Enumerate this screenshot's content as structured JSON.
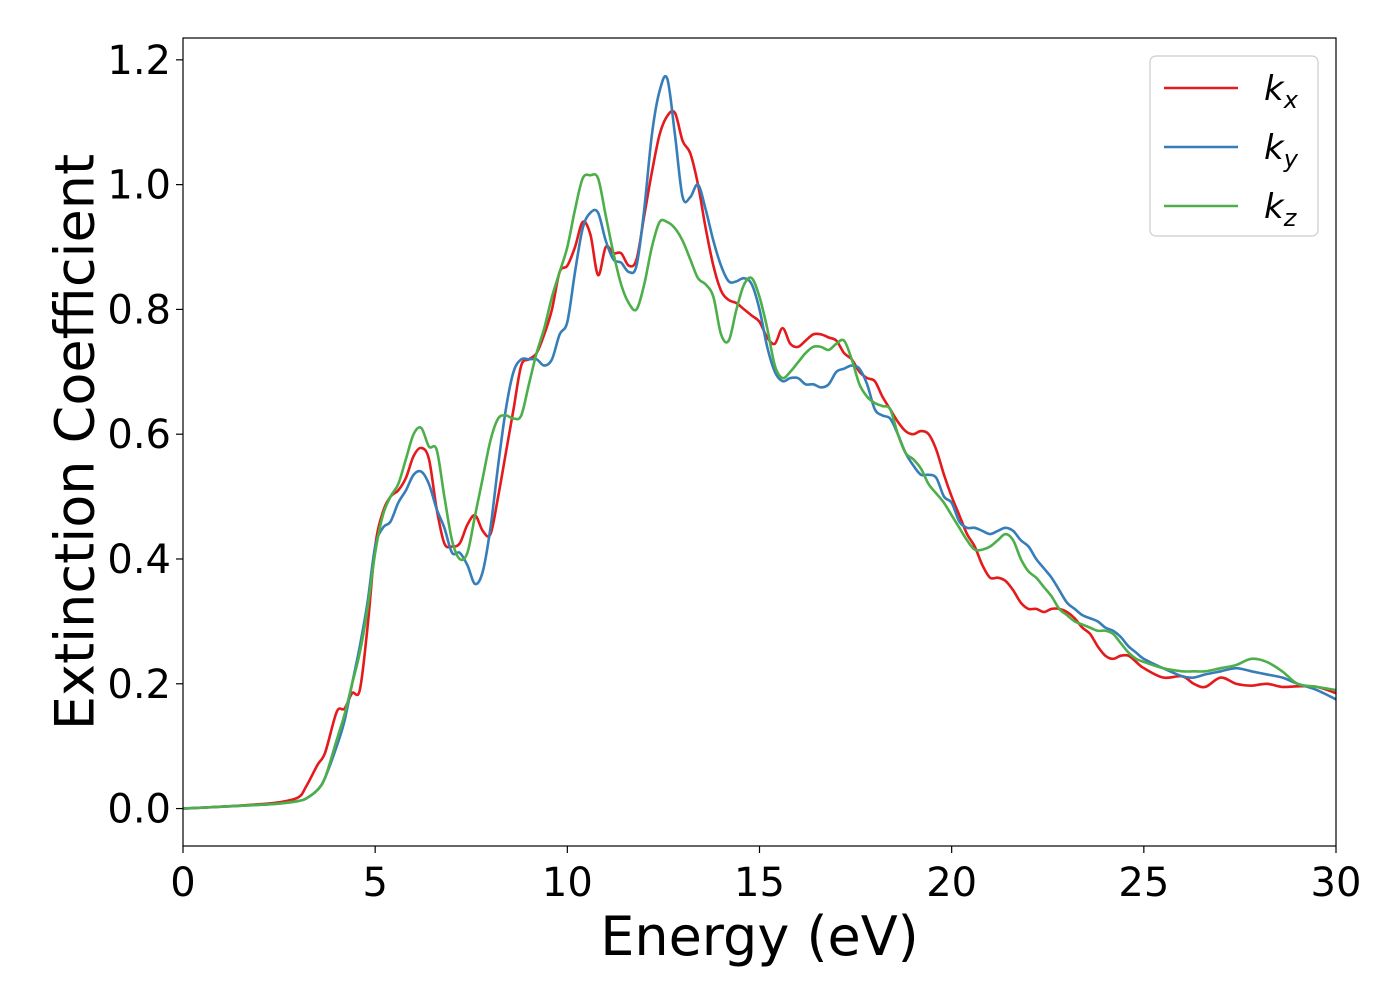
{
  "chart_data": {
    "type": "line",
    "title": "",
    "xlabel": "Energy (eV)",
    "ylabel": "Extinction Coefficient",
    "xlim": [
      0,
      30
    ],
    "ylim": [
      -0.06,
      1.235
    ],
    "xticks": [
      0,
      5,
      10,
      15,
      20,
      25,
      30
    ],
    "xtick_labels": [
      "0",
      "5",
      "10",
      "15",
      "20",
      "25",
      "30"
    ],
    "yticks": [
      0.0,
      0.2,
      0.4,
      0.6,
      0.8,
      1.0,
      1.2
    ],
    "ytick_labels": [
      "0.0",
      "0.2",
      "0.4",
      "0.6",
      "0.8",
      "1.0",
      "1.2"
    ],
    "grid": false,
    "legend_position": "top-right",
    "series": [
      {
        "name": "kx",
        "legend_base": "k",
        "legend_sub": "x",
        "color": "#e41a1c",
        "x": [
          0,
          1,
          2,
          2.5,
          3,
          3.2,
          3.5,
          3.7,
          4.0,
          4.2,
          4.4,
          4.6,
          4.8,
          5.0,
          5.2,
          5.4,
          5.6,
          5.8,
          6.0,
          6.2,
          6.4,
          6.6,
          6.8,
          7.0,
          7.2,
          7.4,
          7.6,
          7.8,
          8.0,
          8.2,
          8.4,
          8.6,
          8.8,
          9.0,
          9.2,
          9.4,
          9.6,
          9.8,
          10.0,
          10.2,
          10.4,
          10.6,
          10.8,
          11.0,
          11.2,
          11.4,
          11.6,
          11.8,
          12.0,
          12.2,
          12.4,
          12.6,
          12.8,
          13.0,
          13.2,
          13.4,
          13.6,
          13.8,
          14.0,
          14.2,
          14.4,
          14.6,
          14.8,
          15.0,
          15.2,
          15.4,
          15.6,
          15.8,
          16.0,
          16.2,
          16.4,
          16.6,
          16.8,
          17.0,
          17.2,
          17.4,
          17.6,
          17.8,
          18.0,
          18.2,
          18.4,
          18.6,
          18.8,
          19.0,
          19.2,
          19.4,
          19.6,
          19.8,
          20.0,
          20.2,
          20.4,
          20.6,
          20.8,
          21.0,
          21.2,
          21.4,
          21.6,
          21.8,
          22.0,
          22.2,
          22.4,
          22.6,
          22.8,
          23.0,
          23.2,
          23.4,
          23.6,
          23.8,
          24.0,
          24.2,
          24.4,
          24.6,
          24.8,
          25.0,
          25.5,
          26.0,
          26.3,
          26.6,
          27.0,
          27.4,
          27.8,
          28.2,
          28.6,
          29.0,
          29.5,
          30.0
        ],
        "y": [
          0.0,
          0.003,
          0.007,
          0.01,
          0.018,
          0.035,
          0.07,
          0.09,
          0.155,
          0.16,
          0.185,
          0.19,
          0.29,
          0.42,
          0.475,
          0.5,
          0.51,
          0.53,
          0.565,
          0.578,
          0.56,
          0.48,
          0.425,
          0.42,
          0.425,
          0.455,
          0.47,
          0.445,
          0.44,
          0.5,
          0.57,
          0.64,
          0.71,
          0.72,
          0.73,
          0.76,
          0.8,
          0.86,
          0.87,
          0.9,
          0.94,
          0.92,
          0.855,
          0.9,
          0.89,
          0.89,
          0.87,
          0.88,
          0.95,
          1.02,
          1.08,
          1.11,
          1.115,
          1.07,
          1.05,
          1.0,
          0.93,
          0.87,
          0.83,
          0.815,
          0.81,
          0.8,
          0.79,
          0.78,
          0.755,
          0.745,
          0.77,
          0.745,
          0.74,
          0.75,
          0.76,
          0.76,
          0.755,
          0.75,
          0.73,
          0.72,
          0.7,
          0.69,
          0.685,
          0.66,
          0.64,
          0.62,
          0.605,
          0.6,
          0.605,
          0.6,
          0.575,
          0.535,
          0.5,
          0.47,
          0.44,
          0.42,
          0.39,
          0.37,
          0.37,
          0.365,
          0.35,
          0.33,
          0.32,
          0.32,
          0.315,
          0.32,
          0.32,
          0.315,
          0.305,
          0.29,
          0.28,
          0.26,
          0.245,
          0.24,
          0.245,
          0.245,
          0.235,
          0.225,
          0.21,
          0.212,
          0.2,
          0.195,
          0.21,
          0.2,
          0.197,
          0.2,
          0.195,
          0.196,
          0.195,
          0.185
        ]
      },
      {
        "name": "ky",
        "legend_base": "k",
        "legend_sub": "y",
        "color": "#377eb8",
        "x": [
          0,
          1,
          2,
          2.5,
          3,
          3.2,
          3.5,
          3.7,
          4.0,
          4.2,
          4.4,
          4.6,
          4.8,
          5.0,
          5.2,
          5.4,
          5.6,
          5.8,
          6.0,
          6.2,
          6.4,
          6.6,
          6.8,
          7.0,
          7.2,
          7.4,
          7.6,
          7.8,
          8.0,
          8.2,
          8.4,
          8.6,
          8.8,
          9.0,
          9.2,
          9.4,
          9.6,
          9.8,
          10.0,
          10.2,
          10.4,
          10.6,
          10.8,
          11.0,
          11.2,
          11.4,
          11.6,
          11.8,
          12.0,
          12.2,
          12.4,
          12.6,
          12.8,
          13.0,
          13.2,
          13.4,
          13.6,
          13.8,
          14.0,
          14.2,
          14.4,
          14.6,
          14.8,
          15.0,
          15.2,
          15.4,
          15.6,
          15.8,
          16.0,
          16.2,
          16.4,
          16.6,
          16.8,
          17.0,
          17.2,
          17.4,
          17.6,
          17.8,
          18.0,
          18.2,
          18.4,
          18.6,
          18.8,
          19.0,
          19.2,
          19.4,
          19.6,
          19.8,
          20.0,
          20.2,
          20.4,
          20.6,
          20.8,
          21.0,
          21.2,
          21.4,
          21.6,
          21.8,
          22.0,
          22.2,
          22.4,
          22.6,
          22.8,
          23.0,
          23.2,
          23.4,
          23.6,
          23.8,
          24.0,
          24.2,
          24.4,
          24.6,
          24.8,
          25.0,
          25.5,
          26.0,
          26.3,
          26.6,
          27.0,
          27.4,
          27.8,
          28.2,
          28.6,
          29.0,
          29.5,
          30.0
        ],
        "y": [
          0.0,
          0.003,
          0.006,
          0.008,
          0.012,
          0.016,
          0.03,
          0.05,
          0.1,
          0.14,
          0.2,
          0.26,
          0.33,
          0.42,
          0.45,
          0.46,
          0.49,
          0.51,
          0.535,
          0.54,
          0.52,
          0.48,
          0.45,
          0.41,
          0.41,
          0.39,
          0.36,
          0.38,
          0.45,
          0.55,
          0.64,
          0.7,
          0.72,
          0.72,
          0.72,
          0.71,
          0.72,
          0.76,
          0.78,
          0.86,
          0.93,
          0.955,
          0.955,
          0.91,
          0.88,
          0.875,
          0.86,
          0.87,
          0.96,
          1.08,
          1.15,
          1.17,
          1.08,
          0.98,
          0.98,
          1.0,
          0.96,
          0.91,
          0.87,
          0.845,
          0.845,
          0.85,
          0.84,
          0.8,
          0.74,
          0.7,
          0.685,
          0.69,
          0.69,
          0.68,
          0.68,
          0.675,
          0.68,
          0.7,
          0.705,
          0.71,
          0.705,
          0.68,
          0.64,
          0.63,
          0.625,
          0.6,
          0.57,
          0.55,
          0.535,
          0.535,
          0.53,
          0.5,
          0.49,
          0.46,
          0.45,
          0.45,
          0.445,
          0.44,
          0.445,
          0.45,
          0.445,
          0.43,
          0.42,
          0.4,
          0.385,
          0.37,
          0.35,
          0.33,
          0.32,
          0.31,
          0.305,
          0.3,
          0.29,
          0.285,
          0.275,
          0.26,
          0.25,
          0.24,
          0.225,
          0.212,
          0.21,
          0.215,
          0.22,
          0.225,
          0.22,
          0.215,
          0.21,
          0.2,
          0.19,
          0.175
        ]
      },
      {
        "name": "kz",
        "legend_base": "k",
        "legend_sub": "z",
        "color": "#4daf4a",
        "x": [
          0,
          1,
          2,
          2.5,
          3,
          3.2,
          3.5,
          3.7,
          4.0,
          4.2,
          4.4,
          4.6,
          4.8,
          5.0,
          5.2,
          5.4,
          5.6,
          5.8,
          6.0,
          6.2,
          6.4,
          6.6,
          6.8,
          7.0,
          7.2,
          7.4,
          7.6,
          7.8,
          8.0,
          8.2,
          8.4,
          8.6,
          8.8,
          9.0,
          9.2,
          9.4,
          9.6,
          9.8,
          10.0,
          10.2,
          10.4,
          10.6,
          10.8,
          11.0,
          11.2,
          11.4,
          11.6,
          11.8,
          12.0,
          12.2,
          12.4,
          12.6,
          12.8,
          13.0,
          13.2,
          13.4,
          13.6,
          13.8,
          14.0,
          14.2,
          14.4,
          14.6,
          14.8,
          15.0,
          15.2,
          15.4,
          15.6,
          15.8,
          16.0,
          16.2,
          16.4,
          16.6,
          16.8,
          17.0,
          17.2,
          17.4,
          17.6,
          17.8,
          18.0,
          18.2,
          18.4,
          18.6,
          18.8,
          19.0,
          19.2,
          19.4,
          19.6,
          19.8,
          20.0,
          20.2,
          20.4,
          20.6,
          20.8,
          21.0,
          21.2,
          21.4,
          21.6,
          21.8,
          22.0,
          22.2,
          22.4,
          22.6,
          22.8,
          23.0,
          23.2,
          23.4,
          23.6,
          23.8,
          24.0,
          24.2,
          24.4,
          24.6,
          24.8,
          25.0,
          25.5,
          26.0,
          26.3,
          26.6,
          27.0,
          27.4,
          27.8,
          28.2,
          28.6,
          29.0,
          29.5,
          30.0
        ],
        "y": [
          0.0,
          0.003,
          0.006,
          0.008,
          0.012,
          0.016,
          0.03,
          0.05,
          0.11,
          0.15,
          0.2,
          0.25,
          0.32,
          0.41,
          0.47,
          0.5,
          0.52,
          0.56,
          0.6,
          0.61,
          0.58,
          0.575,
          0.5,
          0.43,
          0.4,
          0.41,
          0.47,
          0.53,
          0.59,
          0.625,
          0.63,
          0.625,
          0.63,
          0.68,
          0.73,
          0.77,
          0.82,
          0.86,
          0.9,
          0.96,
          1.01,
          1.015,
          1.01,
          0.95,
          0.89,
          0.84,
          0.81,
          0.8,
          0.84,
          0.9,
          0.94,
          0.94,
          0.93,
          0.91,
          0.88,
          0.85,
          0.84,
          0.82,
          0.76,
          0.75,
          0.8,
          0.84,
          0.85,
          0.82,
          0.77,
          0.71,
          0.69,
          0.7,
          0.715,
          0.73,
          0.74,
          0.74,
          0.735,
          0.745,
          0.75,
          0.72,
          0.68,
          0.66,
          0.65,
          0.645,
          0.64,
          0.6,
          0.57,
          0.56,
          0.545,
          0.52,
          0.505,
          0.49,
          0.47,
          0.45,
          0.43,
          0.415,
          0.415,
          0.42,
          0.43,
          0.44,
          0.43,
          0.4,
          0.38,
          0.37,
          0.355,
          0.34,
          0.32,
          0.31,
          0.3,
          0.295,
          0.29,
          0.285,
          0.285,
          0.28,
          0.265,
          0.25,
          0.24,
          0.235,
          0.225,
          0.22,
          0.22,
          0.22,
          0.225,
          0.23,
          0.24,
          0.235,
          0.22,
          0.2,
          0.195,
          0.19
        ]
      }
    ]
  }
}
